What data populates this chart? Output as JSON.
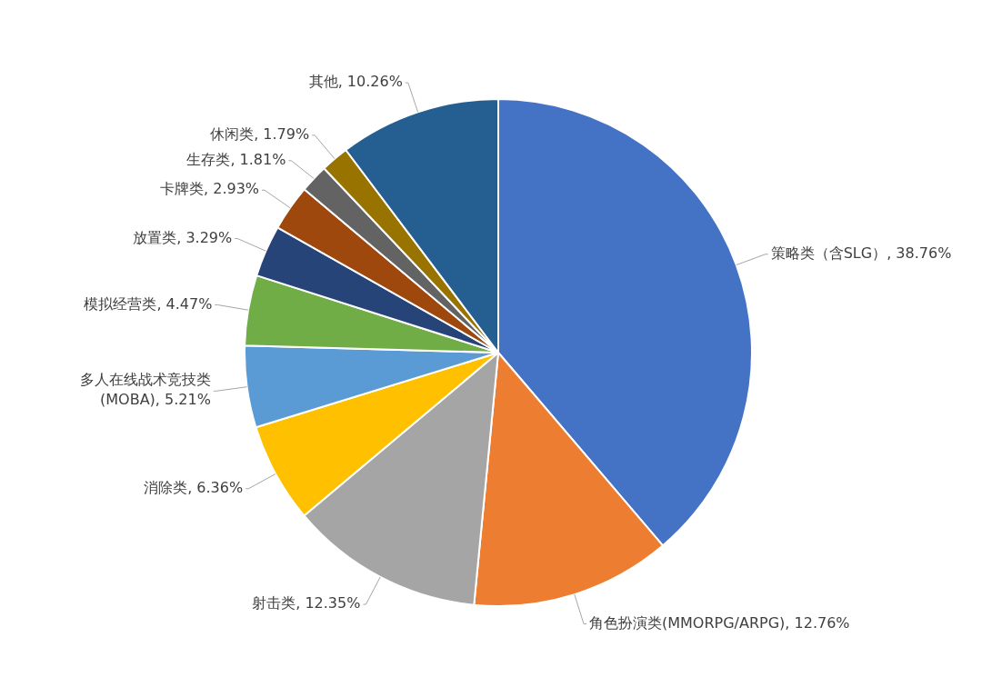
{
  "chart_data": {
    "type": "pie",
    "categories": [
      "策略类（含SLG）",
      "角色扮演类(MMORPG/ARPG)",
      "射击类",
      "消除类",
      "多人在线战术竞技类 (MOBA)",
      "模拟经营类",
      "放置类",
      "卡牌类",
      "生存类",
      "休闲类",
      "其他"
    ],
    "values": [
      38.76,
      12.76,
      12.35,
      6.36,
      5.21,
      4.47,
      3.29,
      2.93,
      1.81,
      1.79,
      10.26
    ],
    "value_labels": [
      "38.76%",
      "12.76%",
      "12.35%",
      "6.36%",
      "5.21%",
      "4.47%",
      "3.29%",
      "2.93%",
      "1.81%",
      "1.79%",
      "10.26%"
    ],
    "colors": [
      "#4472c4",
      "#ed7d31",
      "#a5a5a5",
      "#ffc000",
      "#5b9bd5",
      "#70ad47",
      "#264478",
      "#9e480e",
      "#636363",
      "#997300",
      "#255e91"
    ],
    "legend": false
  }
}
